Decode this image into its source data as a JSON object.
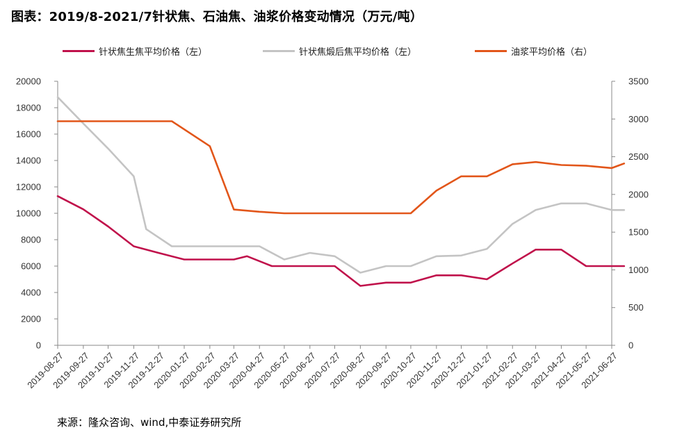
{
  "title": "图表：2019/8-2021/7针状焦、石油焦、油浆价格变动情况（万元/吨）",
  "source": "来源：隆众咨询、wind,中泰证券研究所",
  "colors": {
    "needle_green": "#C0114B",
    "needle_calcined": "#C4C4C4",
    "slurry": "#E2561A",
    "axis": "#888888"
  },
  "chart_data": {
    "type": "line",
    "x": [
      "2019-08-27",
      "2019-09-27",
      "2019-10-27",
      "2019-11-27",
      "2019-12-27",
      "2020-01-27",
      "2020-02-27",
      "2020-03-27",
      "2020-04-27",
      "2020-05-27",
      "2020-06-27",
      "2020-07-27",
      "2020-08-27",
      "2020-09-27",
      "2020-10-27",
      "2020-11-27",
      "2020-12-27",
      "2021-01-27",
      "2021-02-27",
      "2021-03-27",
      "2021-04-27",
      "2021-05-27",
      "2021-06-27"
    ],
    "y_left_ticks": [
      "0",
      "2000",
      "4000",
      "6000",
      "8000",
      "10000",
      "12000",
      "14000",
      "16000",
      "18000",
      "20000"
    ],
    "y_right_ticks": [
      "0",
      "500",
      "1000",
      "1500",
      "2000",
      "2500",
      "3000",
      "3500"
    ],
    "ylim_left": [
      0,
      20000
    ],
    "ylim_right": [
      0,
      3500
    ],
    "grid": false,
    "legend_position": "top",
    "series": [
      {
        "name": "针状焦生焦平均价格（左）",
        "axis": "left",
        "color": "#C0114B",
        "points": [
          [
            "2019-08-27",
            11300
          ],
          [
            "2019-09-27",
            10300
          ],
          [
            "2019-10-27",
            9000
          ],
          [
            "2019-11-27",
            7500
          ],
          [
            "2019-12-27",
            7000
          ],
          [
            "2020-01-27",
            6500
          ],
          [
            "2020-02-27",
            6500
          ],
          [
            "2020-03-27",
            6500
          ],
          [
            "2020-04-12",
            6750
          ],
          [
            "2020-05-12",
            6000
          ],
          [
            "2020-06-27",
            6000
          ],
          [
            "2020-07-27",
            6000
          ],
          [
            "2020-08-27",
            4500
          ],
          [
            "2020-09-27",
            4750
          ],
          [
            "2020-10-27",
            4750
          ],
          [
            "2020-11-27",
            5300
          ],
          [
            "2020-12-27",
            5300
          ],
          [
            "2021-01-27",
            5000
          ],
          [
            "2021-02-27",
            6200
          ],
          [
            "2021-03-27",
            7250
          ],
          [
            "2021-04-27",
            7250
          ],
          [
            "2021-05-27",
            6000
          ],
          [
            "2021-06-27",
            6000
          ],
          [
            "2021-07-12",
            6000
          ]
        ]
      },
      {
        "name": "针状焦煅后焦平均价格（左）",
        "axis": "left",
        "color": "#C4C4C4",
        "points": [
          [
            "2019-08-27",
            18800
          ],
          [
            "2019-09-27",
            16800
          ],
          [
            "2019-10-27",
            14900
          ],
          [
            "2019-11-27",
            12800
          ],
          [
            "2019-12-12",
            8800
          ],
          [
            "2020-01-12",
            7500
          ],
          [
            "2020-02-27",
            7500
          ],
          [
            "2020-03-27",
            7500
          ],
          [
            "2020-04-27",
            7500
          ],
          [
            "2020-05-27",
            6500
          ],
          [
            "2020-06-27",
            7000
          ],
          [
            "2020-07-27",
            6750
          ],
          [
            "2020-08-27",
            5500
          ],
          [
            "2020-09-27",
            6000
          ],
          [
            "2020-10-27",
            6000
          ],
          [
            "2020-11-27",
            6750
          ],
          [
            "2020-12-27",
            6800
          ],
          [
            "2021-01-27",
            7300
          ],
          [
            "2021-02-27",
            9200
          ],
          [
            "2021-03-27",
            10250
          ],
          [
            "2021-04-27",
            10750
          ],
          [
            "2021-05-27",
            10750
          ],
          [
            "2021-06-27",
            10250
          ],
          [
            "2021-07-12",
            10250
          ]
        ]
      },
      {
        "name": "油浆平均价格（右）",
        "axis": "right",
        "color": "#E2561A",
        "points": [
          [
            "2019-08-27",
            2970
          ],
          [
            "2019-09-27",
            2970
          ],
          [
            "2019-10-27",
            2970
          ],
          [
            "2019-11-27",
            2970
          ],
          [
            "2019-12-27",
            2970
          ],
          [
            "2020-01-12",
            2970
          ],
          [
            "2020-02-27",
            2640
          ],
          [
            "2020-03-27",
            1800
          ],
          [
            "2020-04-27",
            1770
          ],
          [
            "2020-05-27",
            1750
          ],
          [
            "2020-06-27",
            1750
          ],
          [
            "2020-07-27",
            1750
          ],
          [
            "2020-08-27",
            1750
          ],
          [
            "2020-09-27",
            1750
          ],
          [
            "2020-10-27",
            1750
          ],
          [
            "2020-11-27",
            2050
          ],
          [
            "2020-12-27",
            2240
          ],
          [
            "2021-01-27",
            2240
          ],
          [
            "2021-02-27",
            2400
          ],
          [
            "2021-03-27",
            2430
          ],
          [
            "2021-04-27",
            2390
          ],
          [
            "2021-05-27",
            2380
          ],
          [
            "2021-06-27",
            2350
          ],
          [
            "2021-07-12",
            2410
          ]
        ]
      }
    ]
  }
}
